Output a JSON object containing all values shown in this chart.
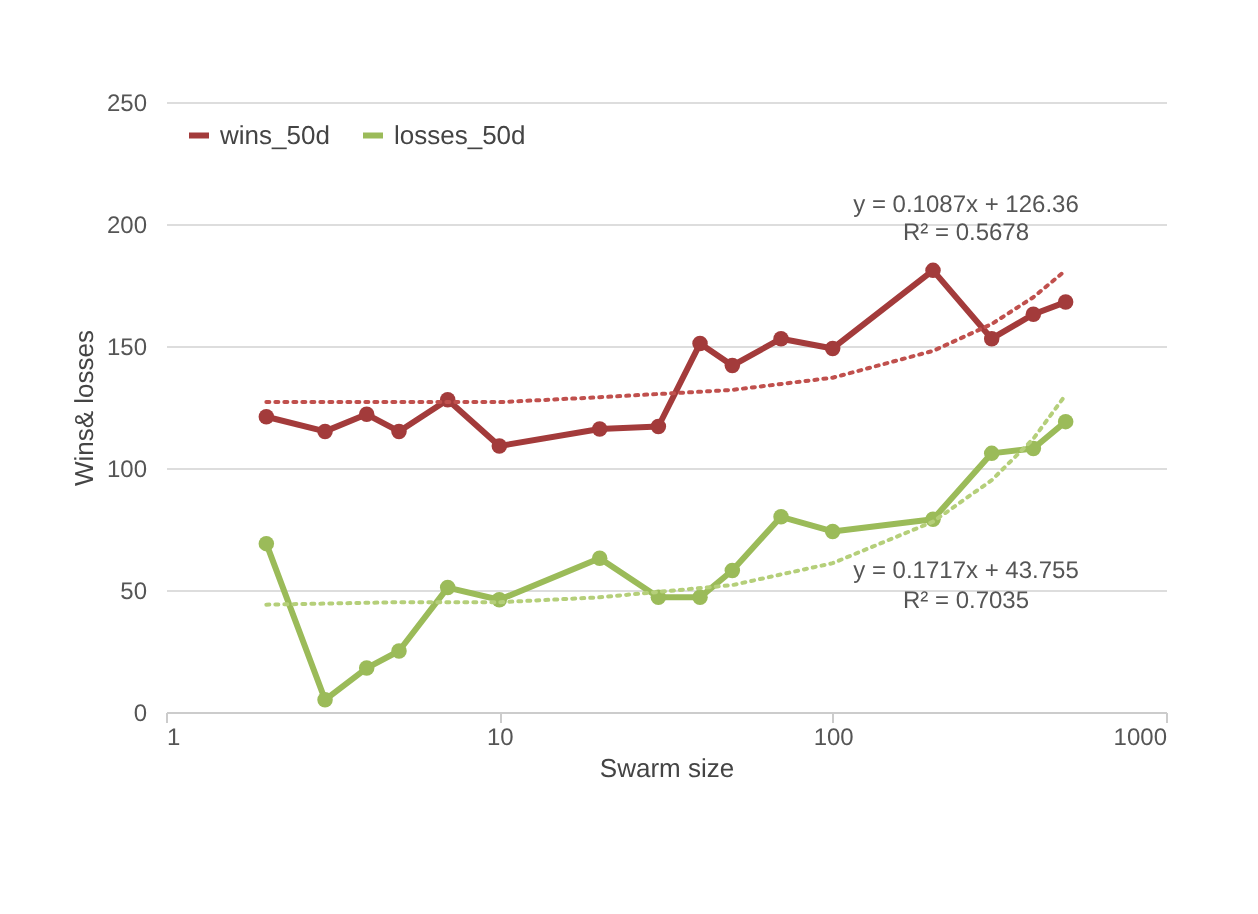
{
  "chart_data": {
    "type": "line",
    "xlabel": "Swarm size",
    "ylabel": "Wins& losses",
    "x": [
      2,
      3,
      4,
      5,
      7,
      10,
      20,
      30,
      40,
      50,
      70,
      100,
      200,
      300,
      400,
      500
    ],
    "series": [
      {
        "name": "wins_50d",
        "color": "#a33b3b",
        "values": [
          121,
          115,
          122,
          115,
          128,
          109,
          116,
          117,
          151,
          142,
          153,
          149,
          181,
          153,
          163,
          168
        ]
      },
      {
        "name": "losses_50d",
        "color": "#9bbb59",
        "values": [
          69,
          5,
          18,
          25,
          51,
          46,
          63,
          47,
          47,
          58,
          80,
          74,
          79,
          106,
          108,
          119
        ]
      },
      {
        "type": "line",
        "color": "#c0504d",
        "marker": "none",
        "line_style": "dotted",
        "x": [
          2,
          5,
          10,
          20,
          50,
          100,
          200,
          300,
          400,
          500
        ],
        "values": [
          127,
          127,
          127,
          129,
          132,
          137,
          148,
          159,
          170,
          181
        ]
      },
      {
        "type": "line",
        "color": "#b5cf7a",
        "marker": "none",
        "line_style": "dotted",
        "x": [
          2,
          5,
          10,
          20,
          50,
          100,
          200,
          300,
          400,
          500
        ],
        "values": [
          44,
          45,
          45,
          47,
          52,
          61,
          78,
          95,
          112,
          130
        ]
      }
    ],
    "annotations": [
      "y = 0.1087x + 126.36",
      "R² = 0.5678",
      "y = 0.1717x + 43.755",
      "R² = 0.7035"
    ],
    "xlim": [
      1,
      1000
    ],
    "xticks": [
      1,
      10,
      100,
      {
        "value": 1000,
        "label": "1000"
      }
    ],
    "ylim": [
      0,
      250
    ],
    "yticks": [
      0,
      50,
      100,
      150,
      200,
      250
    ],
    "log": "x",
    "grid": "y",
    "legend": "top left",
    "marker": "circle",
    "line_style": "solid"
  }
}
